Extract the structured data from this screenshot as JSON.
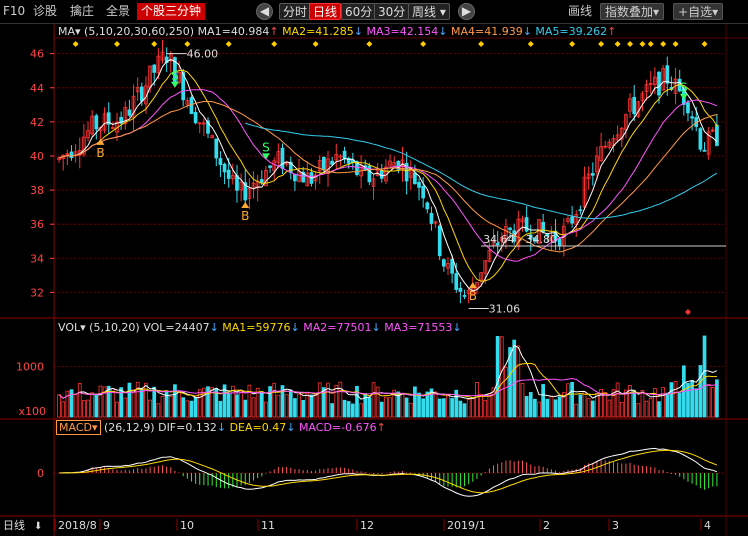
{
  "toolbar": {
    "f10": "F10",
    "diagnose": "诊股",
    "search": "擒庄",
    "full_view": "全景",
    "intraday": "个股三分钟",
    "periods": [
      "分时",
      "日线",
      "60分",
      "30分",
      "周线"
    ],
    "active_period": "日线",
    "draw_line": "画线",
    "index_overlay": "指数叠加",
    "add_watch": "自选",
    "plus": "+",
    "back": "◀",
    "forward": "▶"
  },
  "ma_header": {
    "name": "MA",
    "params": "(5,10,20,30,60,250)",
    "ma1": "MA1=40.984",
    "ma2": "MA2=41.285",
    "ma3": "MA3=42.154",
    "ma4": "MA4=41.939",
    "ma5": "MA5=39.262"
  },
  "vol_header": {
    "name": "VOL",
    "params": "(5,10,20)",
    "vol": "VOL=24407",
    "ma1": "MA1=59776",
    "ma2": "MA2=77501",
    "ma3": "MA3=71553"
  },
  "macd_header": {
    "name": "MACD",
    "params": "(26,12,9)",
    "dif": "DIF=0.132",
    "dea": "DEA=0.47",
    "macd": "MACD=-0.676"
  },
  "price_axis": [
    "46",
    "44",
    "42",
    "40",
    "38",
    "36",
    "34",
    "32"
  ],
  "vol_axis": [
    "1000",
    "x100"
  ],
  "macd_axis": [
    "0"
  ],
  "date_axis": {
    "period": "日线",
    "labels": [
      "2018/8",
      "9",
      "10",
      "11",
      "12",
      "2019/1",
      "2",
      "3",
      "4"
    ]
  },
  "annotations": {
    "high": "46.00",
    "low": "31.06",
    "range": "34.64 - 34.80",
    "buy": "B",
    "sell": "S"
  },
  "colors": {
    "up": "#ff3333",
    "down": "#33ddee",
    "ma1": "#ffffff",
    "ma2": "#ffd700",
    "ma3": "#ff55ff",
    "ma4": "#ff9944",
    "ma5": "#33ccee",
    "macd_up": "#ff5555",
    "macd_down": "#33ee33",
    "grid": "#8b0000",
    "signal_diamond": "#ffcc00"
  },
  "chart_data": {
    "type": "candlestick",
    "price_range": [
      30.5,
      46.8
    ],
    "marked_high": 46.0,
    "marked_low": 31.06,
    "ma_last": {
      "MA1": 40.984,
      "MA2": 41.285,
      "MA3": 42.154,
      "MA4": 41.939,
      "MA5": 39.262
    },
    "volume_last": {
      "VOL": 24407,
      "MA1": 59776,
      "MA2": 77501,
      "MA3": 71553
    },
    "macd_last": {
      "DIF": 0.132,
      "DEA": 0.47,
      "MACD": -0.676
    }
  }
}
